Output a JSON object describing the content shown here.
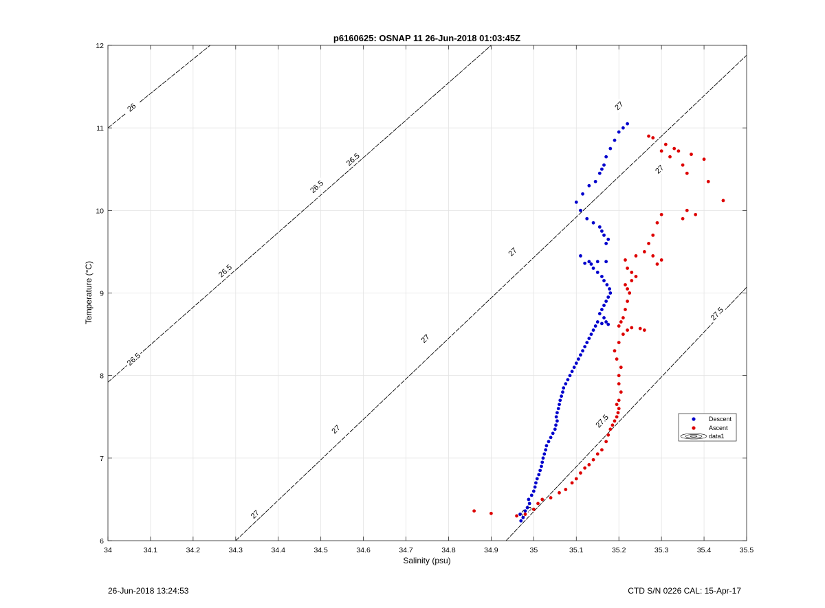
{
  "chart_data": {
    "type": "scatter",
    "title": "p6160625: OSNAP 11 26-Jun-2018 01:03:45Z",
    "xlabel": "Salinity (psu)",
    "ylabel": "Temperature (°C)",
    "xlim": [
      34,
      35.5
    ],
    "ylim": [
      6,
      12
    ],
    "xticks": [
      "34",
      "34.1",
      "34.2",
      "34.3",
      "34.4",
      "34.5",
      "34.6",
      "34.7",
      "34.8",
      "34.9",
      "35",
      "35.1",
      "35.2",
      "35.3",
      "35.4",
      "35.5"
    ],
    "yticks": [
      "6",
      "7",
      "8",
      "9",
      "10",
      "11",
      "12"
    ],
    "grid": true,
    "legend_position": "right",
    "legend": [
      "Descent",
      "Ascent",
      "data1"
    ],
    "colors": {
      "Descent": "#0000cc",
      "Ascent": "#dd0000",
      "contour": "#000000"
    },
    "series": [
      {
        "name": "Descent",
        "points": [
          [
            34.97,
            6.24
          ],
          [
            34.975,
            6.28
          ],
          [
            34.968,
            6.32
          ],
          [
            34.98,
            6.36
          ],
          [
            34.985,
            6.4
          ],
          [
            34.99,
            6.45
          ],
          [
            34.988,
            6.5
          ],
          [
            34.995,
            6.55
          ],
          [
            35.0,
            6.6
          ],
          [
            35.003,
            6.65
          ],
          [
            35.005,
            6.7
          ],
          [
            35.008,
            6.75
          ],
          [
            35.012,
            6.8
          ],
          [
            35.015,
            6.85
          ],
          [
            35.018,
            6.9
          ],
          [
            35.02,
            6.95
          ],
          [
            35.022,
            7.0
          ],
          [
            35.025,
            7.05
          ],
          [
            35.028,
            7.1
          ],
          [
            35.03,
            7.15
          ],
          [
            35.035,
            7.2
          ],
          [
            35.04,
            7.25
          ],
          [
            35.045,
            7.3
          ],
          [
            35.05,
            7.35
          ],
          [
            35.052,
            7.4
          ],
          [
            35.055,
            7.45
          ],
          [
            35.053,
            7.5
          ],
          [
            35.055,
            7.55
          ],
          [
            35.058,
            7.6
          ],
          [
            35.06,
            7.65
          ],
          [
            35.062,
            7.7
          ],
          [
            35.065,
            7.75
          ],
          [
            35.068,
            7.8
          ],
          [
            35.07,
            7.85
          ],
          [
            35.075,
            7.9
          ],
          [
            35.08,
            7.95
          ],
          [
            35.085,
            8.0
          ],
          [
            35.09,
            8.05
          ],
          [
            35.095,
            8.1
          ],
          [
            35.1,
            8.15
          ],
          [
            35.105,
            8.2
          ],
          [
            35.11,
            8.25
          ],
          [
            35.115,
            8.3
          ],
          [
            35.12,
            8.35
          ],
          [
            35.125,
            8.4
          ],
          [
            35.13,
            8.45
          ],
          [
            35.135,
            8.5
          ],
          [
            35.14,
            8.55
          ],
          [
            35.145,
            8.6
          ],
          [
            35.15,
            8.65
          ],
          [
            35.16,
            8.63
          ],
          [
            35.17,
            8.65
          ],
          [
            35.175,
            8.62
          ],
          [
            35.165,
            8.7
          ],
          [
            35.155,
            8.75
          ],
          [
            35.16,
            8.8
          ],
          [
            35.165,
            8.85
          ],
          [
            35.17,
            8.9
          ],
          [
            35.175,
            8.95
          ],
          [
            35.18,
            9.0
          ],
          [
            35.178,
            9.05
          ],
          [
            35.172,
            9.1
          ],
          [
            35.165,
            9.15
          ],
          [
            35.16,
            9.2
          ],
          [
            35.15,
            9.25
          ],
          [
            35.14,
            9.3
          ],
          [
            35.135,
            9.35
          ],
          [
            35.13,
            9.38
          ],
          [
            35.15,
            9.38
          ],
          [
            35.17,
            9.38
          ],
          [
            35.11,
            9.45
          ],
          [
            35.12,
            9.36
          ],
          [
            35.17,
            9.6
          ],
          [
            35.175,
            9.65
          ],
          [
            35.165,
            9.7
          ],
          [
            35.16,
            9.75
          ],
          [
            35.155,
            9.8
          ],
          [
            35.14,
            9.85
          ],
          [
            35.125,
            9.9
          ],
          [
            35.11,
            10.0
          ],
          [
            35.1,
            10.1
          ],
          [
            35.115,
            10.2
          ],
          [
            35.13,
            10.3
          ],
          [
            35.145,
            10.35
          ],
          [
            35.155,
            10.45
          ],
          [
            35.16,
            10.5
          ],
          [
            35.165,
            10.55
          ],
          [
            35.17,
            10.65
          ],
          [
            35.18,
            10.75
          ],
          [
            35.19,
            10.85
          ],
          [
            35.2,
            10.95
          ],
          [
            35.21,
            11.0
          ],
          [
            35.22,
            11.05
          ]
        ]
      },
      {
        "name": "Ascent",
        "points": [
          [
            34.86,
            6.36
          ],
          [
            34.9,
            6.33
          ],
          [
            34.96,
            6.3
          ],
          [
            34.98,
            6.32
          ],
          [
            35.0,
            6.38
          ],
          [
            35.01,
            6.45
          ],
          [
            35.02,
            6.5
          ],
          [
            35.04,
            6.52
          ],
          [
            35.06,
            6.58
          ],
          [
            35.075,
            6.62
          ],
          [
            35.09,
            6.7
          ],
          [
            35.1,
            6.75
          ],
          [
            35.11,
            6.82
          ],
          [
            35.12,
            6.88
          ],
          [
            35.13,
            6.92
          ],
          [
            35.14,
            6.98
          ],
          [
            35.15,
            7.05
          ],
          [
            35.16,
            7.1
          ],
          [
            35.17,
            7.2
          ],
          [
            35.175,
            7.28
          ],
          [
            35.18,
            7.35
          ],
          [
            35.185,
            7.4
          ],
          [
            35.19,
            7.45
          ],
          [
            35.195,
            7.5
          ],
          [
            35.198,
            7.55
          ],
          [
            35.2,
            7.6
          ],
          [
            35.195,
            7.65
          ],
          [
            35.2,
            7.7
          ],
          [
            35.205,
            7.8
          ],
          [
            35.2,
            7.9
          ],
          [
            35.2,
            8.0
          ],
          [
            35.205,
            8.1
          ],
          [
            35.195,
            8.2
          ],
          [
            35.19,
            8.3
          ],
          [
            35.2,
            8.4
          ],
          [
            35.21,
            8.5
          ],
          [
            35.22,
            8.55
          ],
          [
            35.23,
            8.58
          ],
          [
            35.25,
            8.57
          ],
          [
            35.26,
            8.55
          ],
          [
            35.2,
            8.6
          ],
          [
            35.205,
            8.65
          ],
          [
            35.21,
            8.7
          ],
          [
            35.215,
            8.8
          ],
          [
            35.22,
            8.9
          ],
          [
            35.225,
            9.0
          ],
          [
            35.22,
            9.05
          ],
          [
            35.215,
            9.1
          ],
          [
            35.23,
            9.15
          ],
          [
            35.24,
            9.2
          ],
          [
            35.23,
            9.25
          ],
          [
            35.22,
            9.3
          ],
          [
            35.215,
            9.4
          ],
          [
            35.24,
            9.45
          ],
          [
            35.26,
            9.5
          ],
          [
            35.28,
            9.45
          ],
          [
            35.3,
            9.4
          ],
          [
            35.29,
            9.35
          ],
          [
            35.27,
            9.6
          ],
          [
            35.28,
            9.7
          ],
          [
            35.29,
            9.85
          ],
          [
            35.3,
            9.95
          ],
          [
            35.35,
            9.9
          ],
          [
            35.36,
            10.0
          ],
          [
            35.38,
            9.95
          ],
          [
            35.445,
            10.12
          ],
          [
            35.41,
            10.35
          ],
          [
            35.36,
            10.45
          ],
          [
            35.35,
            10.55
          ],
          [
            35.32,
            10.65
          ],
          [
            35.3,
            10.72
          ],
          [
            35.33,
            10.75
          ],
          [
            35.34,
            10.72
          ],
          [
            35.31,
            10.8
          ],
          [
            35.28,
            10.88
          ],
          [
            35.27,
            10.9
          ],
          [
            35.37,
            10.68
          ],
          [
            35.4,
            10.62
          ]
        ]
      }
    ],
    "contours": [
      {
        "label": "26",
        "xs": [
          34.0,
          34.24
        ],
        "ys": [
          11.0,
          12.0
        ]
      },
      {
        "label": "26.5",
        "xs": [
          34.0,
          34.9
        ],
        "ys": [
          7.92,
          12.0
        ]
      },
      {
        "label": "27",
        "xs": [
          34.3,
          35.5
        ],
        "ys": [
          6.0,
          11.88
        ]
      },
      {
        "label": "27.5",
        "xs": [
          34.935,
          35.5
        ],
        "ys": [
          6.0,
          9.07
        ]
      }
    ],
    "contour_labels": [
      {
        "text": "26",
        "x": 34.055,
        "y": 11.25
      },
      {
        "text": "26.5",
        "x": 34.575,
        "y": 10.62
      },
      {
        "text": "26.5",
        "x": 34.49,
        "y": 10.29
      },
      {
        "text": "26.5",
        "x": 34.275,
        "y": 9.27
      },
      {
        "text": "26.5",
        "x": 34.06,
        "y": 8.2
      },
      {
        "text": "27",
        "x": 35.2,
        "y": 11.27
      },
      {
        "text": "27",
        "x": 35.295,
        "y": 10.5
      },
      {
        "text": "27",
        "x": 34.95,
        "y": 9.5
      },
      {
        "text": "27",
        "x": 34.745,
        "y": 8.45
      },
      {
        "text": "27",
        "x": 34.535,
        "y": 7.35
      },
      {
        "text": "27",
        "x": 34.345,
        "y": 6.32
      },
      {
        "text": "27.5",
        "x": 35.43,
        "y": 8.75
      },
      {
        "text": "27.5",
        "x": 35.16,
        "y": 7.45
      },
      {
        "text": "27.5",
        "x": 34.98,
        "y": 6.35
      }
    ]
  },
  "footer": {
    "timestamp": "26-Jun-2018 13:24:53",
    "instrument": "CTD S/N 0226  CAL: 15-Apr-17"
  }
}
